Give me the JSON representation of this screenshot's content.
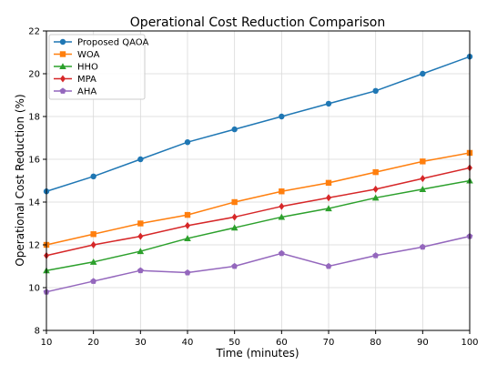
{
  "chart_data": {
    "type": "line",
    "title": "Operational Cost Reduction Comparison",
    "xlabel": "Time (minutes)",
    "ylabel": "Operational Cost Reduction (%)",
    "x": [
      10,
      20,
      30,
      40,
      50,
      60,
      70,
      80,
      90,
      100
    ],
    "xlim": [
      10,
      100
    ],
    "ylim": [
      8,
      22
    ],
    "xticks": [
      10,
      20,
      30,
      40,
      50,
      60,
      70,
      80,
      90,
      100
    ],
    "yticks": [
      8,
      10,
      12,
      14,
      16,
      18,
      20,
      22
    ],
    "grid": true,
    "legend_position": "top-left",
    "series": [
      {
        "name": "Proposed QAOA",
        "color": "#1f77b4",
        "marker": "circle",
        "values": [
          14.5,
          15.2,
          16.0,
          16.8,
          17.4,
          18.0,
          18.6,
          19.2,
          20.0,
          20.8
        ]
      },
      {
        "name": "WOA",
        "color": "#ff7f0e",
        "marker": "square",
        "values": [
          12.0,
          12.5,
          13.0,
          13.4,
          14.0,
          14.5,
          14.9,
          15.4,
          15.9,
          16.3
        ]
      },
      {
        "name": "HHO",
        "color": "#2ca02c",
        "marker": "triangle",
        "values": [
          10.8,
          11.2,
          11.7,
          12.3,
          12.8,
          13.3,
          13.7,
          14.2,
          14.6,
          15.0
        ]
      },
      {
        "name": "MPA",
        "color": "#d62728",
        "marker": "diamond",
        "values": [
          11.5,
          12.0,
          12.4,
          12.9,
          13.3,
          13.8,
          14.2,
          14.6,
          15.1,
          15.6
        ]
      },
      {
        "name": "AHA",
        "color": "#9467bd",
        "marker": "pentagon",
        "values": [
          9.8,
          10.3,
          10.8,
          10.7,
          11.0,
          11.6,
          11.0,
          11.5,
          11.9,
          12.4
        ]
      }
    ]
  }
}
